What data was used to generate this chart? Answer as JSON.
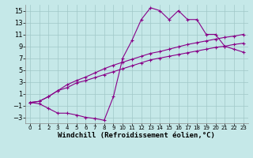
{
  "xlabel": "Windchill (Refroidissement éolien,°C)",
  "background_color": "#c5e8e8",
  "grid_color": "#a0c8c8",
  "line_color": "#880088",
  "xlim": [
    -0.5,
    23.5
  ],
  "ylim": [
    -4,
    16
  ],
  "xticks": [
    0,
    1,
    2,
    3,
    4,
    5,
    6,
    7,
    8,
    9,
    10,
    11,
    12,
    13,
    14,
    15,
    16,
    17,
    18,
    19,
    20,
    21,
    22,
    23
  ],
  "yticks": [
    -3,
    -1,
    1,
    3,
    5,
    7,
    9,
    11,
    13,
    15
  ],
  "line1_x": [
    0,
    1,
    2,
    3,
    4,
    5,
    6,
    7,
    8,
    9,
    10,
    11,
    12,
    13,
    14,
    15,
    16,
    17,
    18,
    19,
    20,
    21,
    22,
    23
  ],
  "line1_y": [
    -0.5,
    -0.3,
    0.5,
    1.5,
    2.0,
    2.8,
    3.2,
    3.7,
    4.2,
    4.7,
    5.2,
    5.7,
    6.2,
    6.7,
    7.0,
    7.3,
    7.6,
    7.9,
    8.2,
    8.5,
    8.8,
    9.0,
    9.3,
    9.5
  ],
  "line2_x": [
    0,
    1,
    2,
    3,
    4,
    5,
    6,
    7,
    8,
    9,
    10,
    11,
    12,
    13,
    14,
    15,
    16,
    17,
    18,
    19,
    20,
    21,
    22,
    23
  ],
  "line2_y": [
    -0.5,
    -0.3,
    0.5,
    1.5,
    2.5,
    3.2,
    3.8,
    4.5,
    5.2,
    5.8,
    6.3,
    6.8,
    7.3,
    7.8,
    8.1,
    8.5,
    8.9,
    9.3,
    9.6,
    9.9,
    10.2,
    10.5,
    10.7,
    11.0
  ],
  "line3_x": [
    0,
    1,
    2,
    3,
    4,
    5,
    6,
    7,
    8,
    9,
    10,
    11,
    12,
    13,
    14,
    15,
    16,
    17,
    18,
    19,
    20,
    21,
    22,
    23
  ],
  "line3_y": [
    -0.5,
    -0.7,
    -1.5,
    -2.3,
    -2.3,
    -2.6,
    -3.0,
    -3.2,
    -3.5,
    0.5,
    7.0,
    10.0,
    13.5,
    15.5,
    15.0,
    13.5,
    15.0,
    13.5,
    13.5,
    11.0,
    11.0,
    9.0,
    8.5,
    8.0
  ],
  "tick_fontsize_x": 5,
  "tick_fontsize_y": 6,
  "xlabel_fontsize": 6.5
}
